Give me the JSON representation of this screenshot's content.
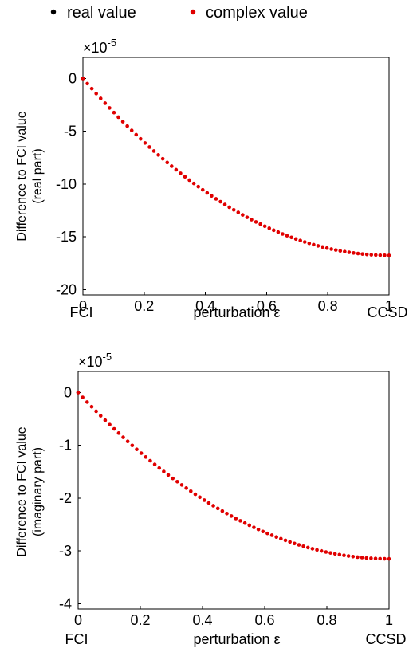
{
  "legend": {
    "items": [
      {
        "label": "real value",
        "color": "#000000"
      },
      {
        "label": "complex value",
        "color": "#e00000"
      }
    ]
  },
  "chart_data": [
    {
      "type": "scatter",
      "title": "",
      "xlabel": "perturbation ε",
      "ylabel": [
        "Difference to FCI value",
        "(real part)"
      ],
      "exponent": "×10",
      "exponent_power": "-5",
      "xlim": [
        0,
        1
      ],
      "ylim": [
        -20.5,
        2
      ],
      "xticks": [
        "0",
        "0.2",
        "0.4",
        "0.6",
        "0.8",
        "1"
      ],
      "xtick_values": [
        0,
        0.2,
        0.4,
        0.6,
        0.8,
        1
      ],
      "yticks": [
        "0",
        "-5",
        "-10",
        "-15",
        "-20"
      ],
      "ytick_values": [
        0,
        -5,
        -10,
        -15,
        -20
      ],
      "x_endpoint_labels": [
        "FCI",
        "CCSD"
      ],
      "series": [
        {
          "name": "real value",
          "color": "#000000",
          "points": [
            [
              0,
              0
            ]
          ]
        },
        {
          "name": "complex value",
          "color": "#e00000",
          "n_points": 70,
          "x_range": [
            0,
            1
          ],
          "curve": "quadratic_to_min",
          "y_end": -16.75
        }
      ]
    },
    {
      "type": "scatter",
      "title": "",
      "xlabel": "perturbation ε",
      "ylabel": [
        "Difference to FCI value",
        "(imaginary part)"
      ],
      "exponent": "×10",
      "exponent_power": "-5",
      "xlim": [
        0,
        1
      ],
      "ylim": [
        -4.1,
        0.4
      ],
      "xticks": [
        "0",
        "0.2",
        "0.4",
        "0.6",
        "0.8",
        "1"
      ],
      "xtick_values": [
        0,
        0.2,
        0.4,
        0.6,
        0.8,
        1
      ],
      "yticks": [
        "0",
        "-1",
        "-2",
        "-3",
        "-4"
      ],
      "ytick_values": [
        0,
        -1,
        -2,
        -3,
        -4
      ],
      "x_endpoint_labels": [
        "FCI",
        "CCSD"
      ],
      "series": [
        {
          "name": "real value",
          "color": "#000000",
          "points": [
            [
              0,
              0
            ]
          ]
        },
        {
          "name": "complex value",
          "color": "#e00000",
          "n_points": 70,
          "x_range": [
            0,
            1
          ],
          "curve": "quadratic_to_min",
          "y_end": -3.15
        }
      ]
    }
  ]
}
